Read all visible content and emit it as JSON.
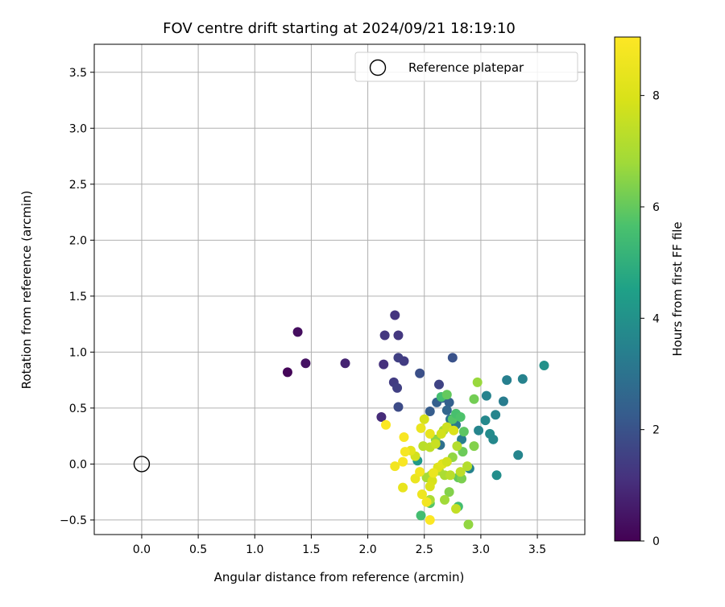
{
  "chart_data": {
    "type": "scatter",
    "title": "FOV centre drift starting at 2024/09/21 18:19:10",
    "xlabel": "Angular distance from reference (arcmin)",
    "ylabel": "Rotation from reference (arcmin)",
    "xlim": [
      -0.42,
      3.92
    ],
    "ylim": [
      -0.63,
      3.75
    ],
    "xticks": [
      "0.0",
      "0.5",
      "1.0",
      "1.5",
      "2.0",
      "2.5",
      "3.0",
      "3.5"
    ],
    "yticks": [
      "−0.5",
      "0.0",
      "0.5",
      "1.0",
      "1.5",
      "2.0",
      "2.5",
      "3.0",
      "3.5"
    ],
    "grid": true,
    "legend": {
      "position": "upper-right",
      "entries": [
        "Reference platepar"
      ]
    },
    "reference_point": {
      "x": 0.0,
      "y": 0.0,
      "style": "open-circle",
      "color": "#000000"
    },
    "colorbar": {
      "label": "Hours from first FF file",
      "colormap": "viridis",
      "range": [
        0,
        9.05
      ],
      "ticks": [
        "0",
        "2",
        "4",
        "6",
        "8"
      ]
    },
    "points": [
      {
        "x": 1.29,
        "y": 0.82,
        "c": 0.1
      },
      {
        "x": 1.38,
        "y": 1.18,
        "c": 0.3
      },
      {
        "x": 1.45,
        "y": 0.9,
        "c": 0.4
      },
      {
        "x": 1.8,
        "y": 0.9,
        "c": 0.8
      },
      {
        "x": 2.12,
        "y": 0.42,
        "c": 1.0
      },
      {
        "x": 2.14,
        "y": 0.89,
        "c": 1.1
      },
      {
        "x": 2.15,
        "y": 1.15,
        "c": 1.3
      },
      {
        "x": 2.24,
        "y": 1.33,
        "c": 1.2
      },
      {
        "x": 2.27,
        "y": 1.15,
        "c": 1.3
      },
      {
        "x": 2.27,
        "y": 0.95,
        "c": 1.5
      },
      {
        "x": 2.32,
        "y": 0.92,
        "c": 1.4
      },
      {
        "x": 2.23,
        "y": 0.73,
        "c": 1.4
      },
      {
        "x": 2.26,
        "y": 0.68,
        "c": 1.5
      },
      {
        "x": 2.27,
        "y": 0.51,
        "c": 1.8
      },
      {
        "x": 2.46,
        "y": 0.81,
        "c": 1.9
      },
      {
        "x": 2.63,
        "y": 0.71,
        "c": 1.6
      },
      {
        "x": 2.75,
        "y": 0.95,
        "c": 2.0
      },
      {
        "x": 2.55,
        "y": 0.47,
        "c": 2.3
      },
      {
        "x": 2.61,
        "y": 0.55,
        "c": 2.4
      },
      {
        "x": 2.66,
        "y": 0.59,
        "c": 2.6
      },
      {
        "x": 2.72,
        "y": 0.55,
        "c": 2.4
      },
      {
        "x": 2.7,
        "y": 0.48,
        "c": 2.6
      },
      {
        "x": 2.64,
        "y": 0.17,
        "c": 2.9
      },
      {
        "x": 2.73,
        "y": 0.4,
        "c": 3.0
      },
      {
        "x": 2.78,
        "y": 0.35,
        "c": 3.2
      },
      {
        "x": 2.83,
        "y": 0.22,
        "c": 3.4
      },
      {
        "x": 2.9,
        "y": -0.04,
        "c": 3.5
      },
      {
        "x": 2.98,
        "y": 0.3,
        "c": 3.6
      },
      {
        "x": 3.04,
        "y": 0.39,
        "c": 3.7
      },
      {
        "x": 3.05,
        "y": 0.61,
        "c": 3.5
      },
      {
        "x": 3.08,
        "y": 0.27,
        "c": 3.8
      },
      {
        "x": 3.11,
        "y": 0.22,
        "c": 3.7
      },
      {
        "x": 3.13,
        "y": 0.44,
        "c": 3.6
      },
      {
        "x": 3.14,
        "y": -0.1,
        "c": 3.9
      },
      {
        "x": 3.2,
        "y": 0.56,
        "c": 3.3
      },
      {
        "x": 3.23,
        "y": 0.75,
        "c": 3.4
      },
      {
        "x": 3.33,
        "y": 0.08,
        "c": 3.6
      },
      {
        "x": 3.37,
        "y": 0.76,
        "c": 3.5
      },
      {
        "x": 3.56,
        "y": 0.88,
        "c": 4.0
      },
      {
        "x": 2.44,
        "y": 0.03,
        "c": 4.3
      },
      {
        "x": 2.47,
        "y": -0.46,
        "c": 5.5
      },
      {
        "x": 2.55,
        "y": -0.35,
        "c": 5.8
      },
      {
        "x": 2.65,
        "y": 0.6,
        "c": 5.5
      },
      {
        "x": 2.7,
        "y": 0.62,
        "c": 6.0
      },
      {
        "x": 2.75,
        "y": 0.4,
        "c": 5.8
      },
      {
        "x": 2.78,
        "y": 0.45,
        "c": 5.6
      },
      {
        "x": 2.82,
        "y": 0.42,
        "c": 5.7
      },
      {
        "x": 2.85,
        "y": 0.29,
        "c": 5.9
      },
      {
        "x": 2.8,
        "y": -0.38,
        "c": 5.5
      },
      {
        "x": 2.84,
        "y": 0.11,
        "c": 6.1
      },
      {
        "x": 2.8,
        "y": -0.12,
        "c": 6.0
      },
      {
        "x": 2.83,
        "y": -0.13,
        "c": 6.3
      },
      {
        "x": 2.72,
        "y": -0.25,
        "c": 6.4
      },
      {
        "x": 2.94,
        "y": 0.58,
        "c": 6.2
      },
      {
        "x": 2.94,
        "y": 0.16,
        "c": 6.4
      },
      {
        "x": 2.97,
        "y": 0.73,
        "c": 6.7
      },
      {
        "x": 2.89,
        "y": -0.54,
        "c": 6.6
      },
      {
        "x": 2.68,
        "y": -0.32,
        "c": 6.8
      },
      {
        "x": 2.75,
        "y": 0.06,
        "c": 6.6
      },
      {
        "x": 2.6,
        "y": 0.22,
        "c": 6.5
      },
      {
        "x": 2.67,
        "y": 0.3,
        "c": 6.9
      },
      {
        "x": 2.56,
        "y": -0.1,
        "c": 6.7
      },
      {
        "x": 2.52,
        "y": -0.12,
        "c": 6.9
      },
      {
        "x": 2.55,
        "y": -0.32,
        "c": 7.0
      },
      {
        "x": 2.63,
        "y": -0.06,
        "c": 7.1
      },
      {
        "x": 2.68,
        "y": -0.1,
        "c": 7.0
      },
      {
        "x": 2.73,
        "y": -0.1,
        "c": 7.3
      },
      {
        "x": 2.79,
        "y": 0.16,
        "c": 7.2
      },
      {
        "x": 2.82,
        "y": -0.07,
        "c": 7.4
      },
      {
        "x": 2.88,
        "y": -0.02,
        "c": 7.2
      },
      {
        "x": 2.78,
        "y": -0.4,
        "c": 7.5
      },
      {
        "x": 2.49,
        "y": 0.16,
        "c": 7.3
      },
      {
        "x": 2.55,
        "y": 0.15,
        "c": 7.4
      },
      {
        "x": 2.6,
        "y": 0.18,
        "c": 7.6
      },
      {
        "x": 2.65,
        "y": 0.27,
        "c": 7.8
      },
      {
        "x": 2.7,
        "y": 0.33,
        "c": 7.7
      },
      {
        "x": 2.76,
        "y": 0.3,
        "c": 8.0
      },
      {
        "x": 2.5,
        "y": 0.4,
        "c": 7.9
      },
      {
        "x": 2.42,
        "y": 0.07,
        "c": 7.8
      },
      {
        "x": 2.57,
        "y": -0.15,
        "c": 7.9
      },
      {
        "x": 2.62,
        "y": -0.03,
        "c": 8.1
      },
      {
        "x": 2.66,
        "y": 0.0,
        "c": 8.2
      },
      {
        "x": 2.7,
        "y": 0.02,
        "c": 7.8
      },
      {
        "x": 2.55,
        "y": -0.2,
        "c": 8.0
      },
      {
        "x": 2.38,
        "y": 0.12,
        "c": 8.3
      },
      {
        "x": 2.47,
        "y": 0.32,
        "c": 8.5
      },
      {
        "x": 2.55,
        "y": 0.27,
        "c": 8.4
      },
      {
        "x": 2.42,
        "y": -0.13,
        "c": 8.5
      },
      {
        "x": 2.48,
        "y": -0.27,
        "c": 8.6
      },
      {
        "x": 2.52,
        "y": -0.34,
        "c": 8.7
      },
      {
        "x": 2.58,
        "y": -0.08,
        "c": 8.5
      },
      {
        "x": 2.46,
        "y": -0.07,
        "c": 8.7
      },
      {
        "x": 2.33,
        "y": 0.11,
        "c": 8.8
      },
      {
        "x": 2.31,
        "y": 0.02,
        "c": 8.9
      },
      {
        "x": 2.32,
        "y": 0.24,
        "c": 8.9
      },
      {
        "x": 2.24,
        "y": -0.02,
        "c": 8.7
      },
      {
        "x": 2.31,
        "y": -0.21,
        "c": 8.4
      },
      {
        "x": 2.16,
        "y": 0.35,
        "c": 9.0
      },
      {
        "x": 2.55,
        "y": -0.5,
        "c": 9.0
      }
    ]
  }
}
